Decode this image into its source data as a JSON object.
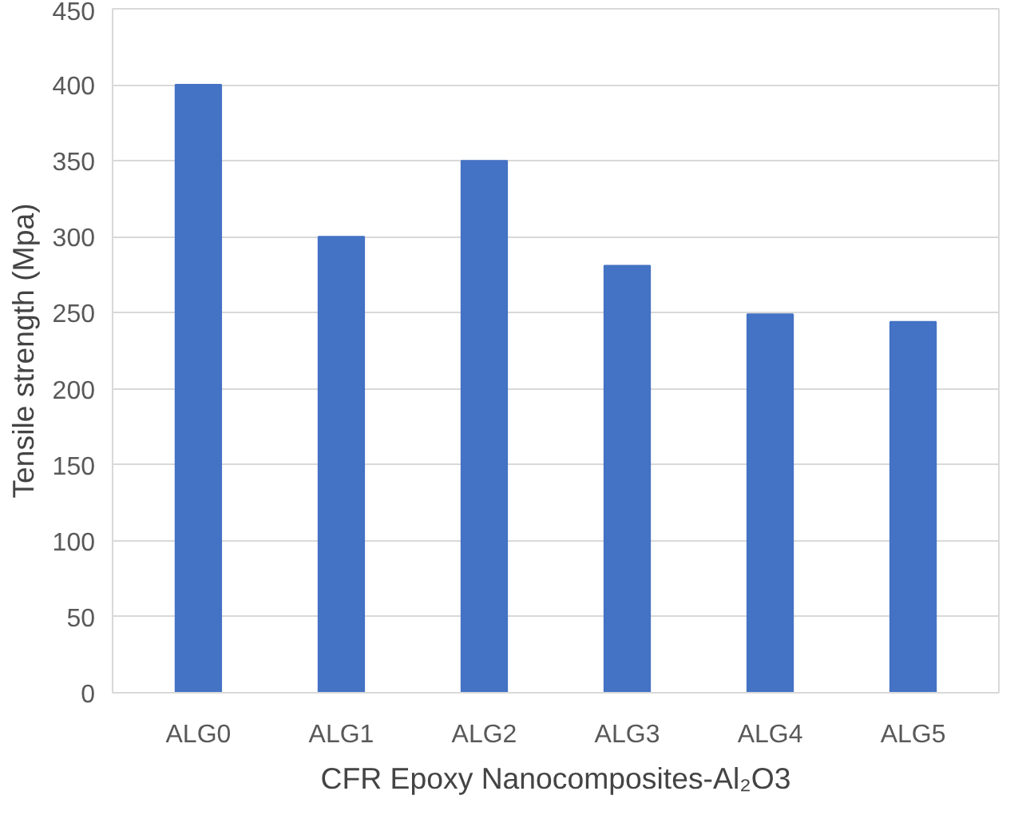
{
  "chart_data": {
    "type": "bar",
    "xlabel": "CFR Epoxy Nanocomposites-Al₂O3",
    "ylabel": "Tensile strength (Mpa)",
    "categories": [
      "ALG0",
      "ALG1",
      "ALG2",
      "ALG3",
      "ALG4",
      "ALG5"
    ],
    "values": [
      400,
      300,
      350,
      281,
      249,
      244
    ],
    "color": "#4472c4",
    "ylim": [
      0,
      450
    ],
    "yticks": [
      0,
      50,
      100,
      150,
      200,
      250,
      300,
      350,
      400,
      450
    ],
    "grid": "y"
  }
}
